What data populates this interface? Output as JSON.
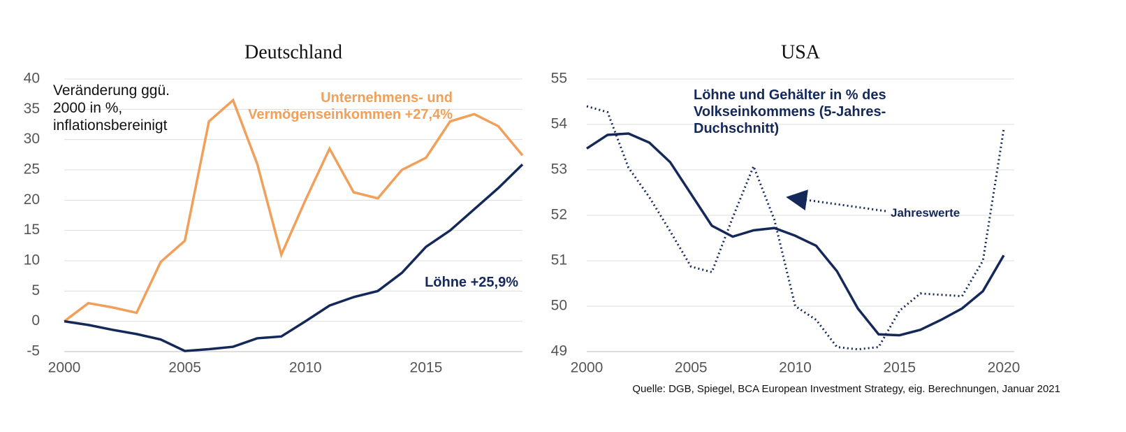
{
  "chart_data": [
    {
      "type": "line",
      "title": "Deutschland",
      "annotation": "Veränderung ggü. 2000 in %, inflationsbereinigt",
      "x": [
        2000,
        2001,
        2002,
        2003,
        2004,
        2005,
        2006,
        2007,
        2008,
        2009,
        2010,
        2011,
        2012,
        2013,
        2014,
        2015,
        2016,
        2017,
        2018,
        2019
      ],
      "series": [
        {
          "name": "Unternehmens- und Vermögenseinkommen +27,4%",
          "color": "#f0a05a",
          "style": "solid",
          "values": [
            0,
            3,
            2.3,
            1.4,
            9.8,
            13.3,
            33,
            36.5,
            26,
            11,
            20,
            28.5,
            21.3,
            20.3,
            25,
            27,
            33,
            34.2,
            32.2,
            27.4
          ]
        },
        {
          "name": "Löhne +25,9%",
          "color": "#14285a",
          "style": "solid",
          "values": [
            0,
            -0.6,
            -1.4,
            -2.1,
            -3,
            -4.9,
            -4.6,
            -4.2,
            -2.8,
            -2.5,
            0,
            2.6,
            4,
            5,
            8,
            12.3,
            15,
            18.5,
            22,
            25.9
          ]
        }
      ],
      "xlim": [
        2000,
        2019
      ],
      "xticks": [
        2000,
        2005,
        2010,
        2015
      ],
      "ylim": [
        -5,
        40
      ],
      "yticks": [
        -5,
        0,
        5,
        10,
        15,
        20,
        25,
        30,
        35,
        40
      ],
      "grid": true
    },
    {
      "type": "line",
      "title": "USA",
      "source": "Quelle: DGB, Spiegel, BCA European Investment Strategy, eig. Berechnungen, Januar 2021",
      "x": [
        2000,
        2001,
        2002,
        2003,
        2004,
        2005,
        2006,
        2007,
        2008,
        2009,
        2010,
        2011,
        2012,
        2013,
        2014,
        2015,
        2016,
        2017,
        2018,
        2019,
        2020
      ],
      "series": [
        {
          "name": "Löhne und Gehälter in % des Volkseinkommens (5-Jahres-Duchschnitt)",
          "color": "#14285a",
          "style": "solid",
          "values": [
            53.47,
            53.77,
            53.8,
            53.6,
            53.17,
            52.47,
            51.77,
            51.53,
            51.67,
            51.72,
            51.55,
            51.33,
            50.77,
            49.95,
            49.38,
            49.36,
            49.48,
            49.7,
            49.95,
            50.33,
            51.12
          ]
        },
        {
          "name": "Jahreswerte",
          "color": "#14285a",
          "style": "dotted",
          "values": [
            54.4,
            54.27,
            53.05,
            52.4,
            51.65,
            50.87,
            50.75,
            51.95,
            53.08,
            51.9,
            50.0,
            49.7,
            49.1,
            49.05,
            49.1,
            49.9,
            50.28,
            50.25,
            50.22,
            51.0,
            53.9
          ]
        }
      ],
      "xlim": [
        2000,
        2020
      ],
      "xticks": [
        2000,
        2005,
        2010,
        2015,
        2020
      ],
      "ylim": [
        49,
        55
      ],
      "yticks": [
        49,
        50,
        51,
        52,
        53,
        54,
        55
      ],
      "grid": true
    }
  ]
}
